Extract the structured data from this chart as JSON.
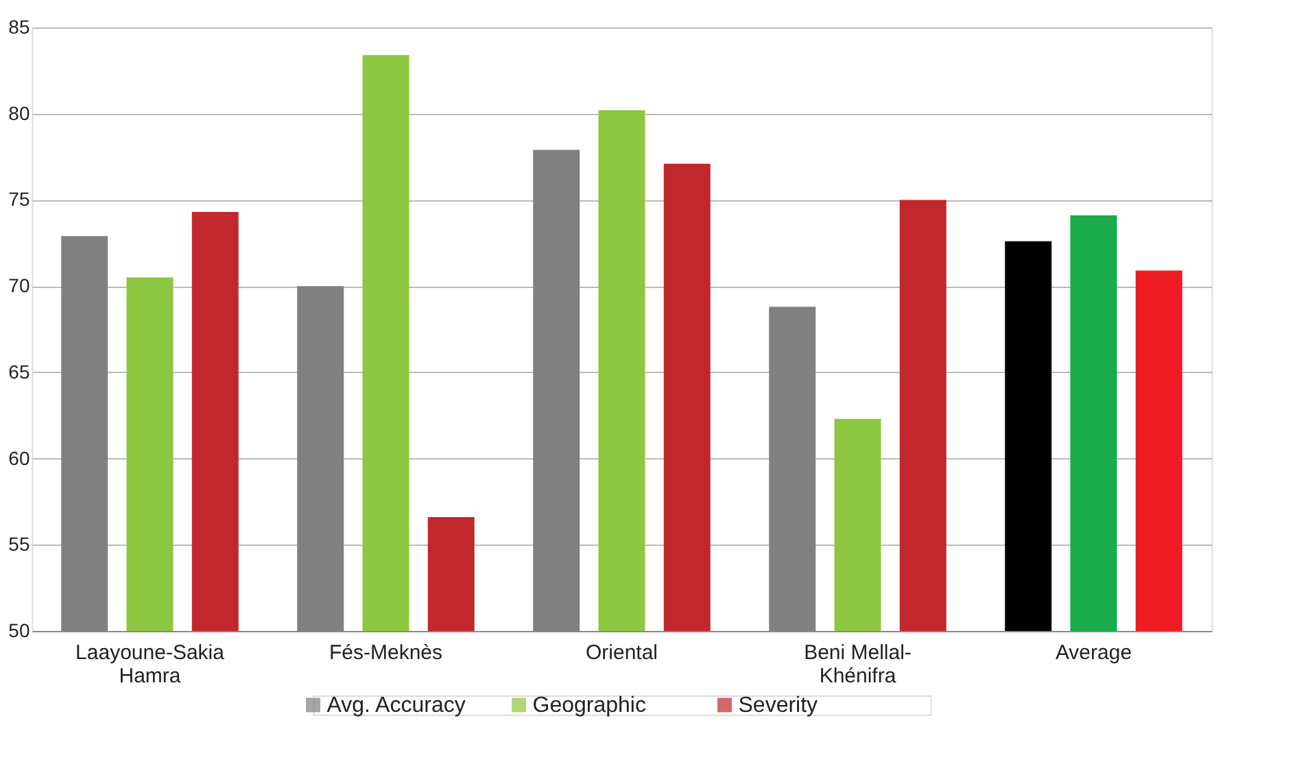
{
  "chart_data": {
    "type": "bar",
    "categories": [
      "Laayoune-Sakia\nHamra",
      "Fés-Meknès",
      "Oriental",
      "Beni Mellal-\nKhénifra",
      "Average"
    ],
    "series": [
      {
        "name": "Avg. Accuracy",
        "color": "#808080",
        "colors": [
          "#808080",
          "#808080",
          "#808080",
          "#808080",
          "#000000"
        ],
        "values": [
          72.9,
          70.0,
          77.9,
          68.8,
          72.6
        ]
      },
      {
        "name": "Geographic",
        "color": "#8dc63f",
        "colors": [
          "#8dc63f",
          "#8dc63f",
          "#8dc63f",
          "#8dc63f",
          "#1aab4b"
        ],
        "values": [
          70.5,
          83.4,
          80.2,
          62.3,
          74.1
        ]
      },
      {
        "name": "Severity",
        "color": "#c1272d",
        "colors": [
          "#c1272d",
          "#c1272d",
          "#c1272d",
          "#c1272d",
          "#ed1c24"
        ],
        "values": [
          74.3,
          56.6,
          77.1,
          75.0,
          70.9
        ]
      }
    ],
    "ylim": [
      50,
      85
    ],
    "yticks": [
      50,
      55,
      60,
      65,
      70,
      75,
      80,
      85
    ],
    "grid": "y",
    "legend": "bottom"
  }
}
